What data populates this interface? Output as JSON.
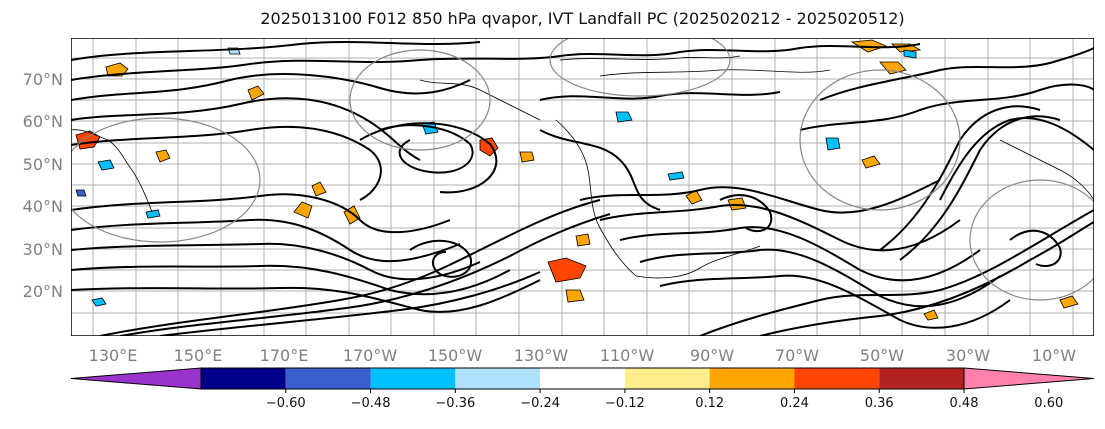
{
  "title": "2025013100 F012 850 hPa qvapor, IVT Landfall PC (2025020212 - 2025020512)",
  "map": {
    "variable": "850 hPa qvapor",
    "lat_labels": [
      "70°N",
      "60°N",
      "50°N",
      "40°N",
      "30°N",
      "20°N"
    ],
    "lon_labels": [
      "130°E",
      "150°E",
      "170°E",
      "170°W",
      "150°W",
      "130°W",
      "110°W",
      "90°W",
      "70°W",
      "50°W",
      "30°W",
      "10°W"
    ],
    "grid": true,
    "contour_color": "#000000",
    "coastline_color": "#000000"
  },
  "colorbar": {
    "tick_labels": [
      "−0.60",
      "−0.48",
      "−0.36",
      "−0.24",
      "−0.12",
      "0.12",
      "0.24",
      "0.36",
      "0.48",
      "0.60"
    ],
    "colors": [
      "#9a32cd",
      "#00008b",
      "#3a5fcd",
      "#00bfff",
      "#b0e2ff",
      "#ffffff",
      "#ffec8b",
      "#ffa500",
      "#ff4500",
      "#b22222",
      "#ff82ab"
    ],
    "extend": "both"
  }
}
